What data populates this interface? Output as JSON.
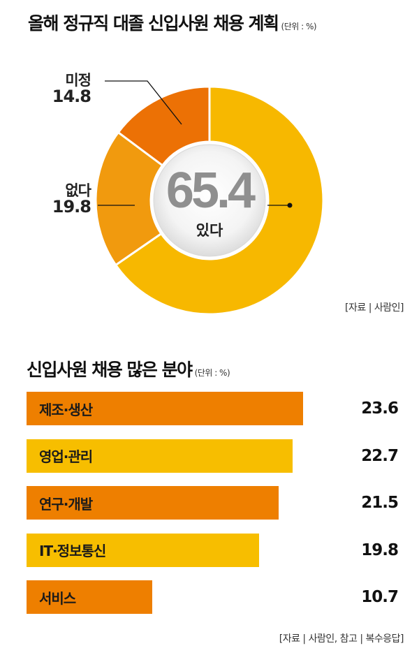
{
  "colors": {
    "yes": "#F7B800",
    "none": "#F19A0E",
    "undecided": "#EC7105",
    "bar_orange": "#EE7F00",
    "bar_yellow": "#F7BE00"
  },
  "chart_data": [
    {
      "type": "pie",
      "title": "올해 정규직 대졸 신입사원 채용 계획",
      "unit": "(단위 : %)",
      "slices": [
        {
          "name": "있다",
          "value": 65.4,
          "color": "#F7B800"
        },
        {
          "name": "없다",
          "value": 19.8,
          "color": "#F19A0E"
        },
        {
          "name": "미정",
          "value": 14.8,
          "color": "#EC7105"
        }
      ],
      "source": "[자료 | 사람인]"
    },
    {
      "type": "bar",
      "orientation": "horizontal",
      "title": "신입사원 채용 많은 분야",
      "unit": "(단위 : %)",
      "xlim": [
        0,
        25
      ],
      "bars": [
        {
          "name": "제조·생산",
          "value": 23.6,
          "color": "#EE7F00"
        },
        {
          "name": "영업·관리",
          "value": 22.7,
          "color": "#F7BE00"
        },
        {
          "name": "연구·개발",
          "value": 21.5,
          "color": "#EE7F00"
        },
        {
          "name": "IT·정보통신",
          "value": 19.8,
          "color": "#F7BE00"
        },
        {
          "name": "서비스",
          "value": 10.7,
          "color": "#EE7F00"
        }
      ],
      "source": "[자료 | 사람인, 참고 | 복수응답]"
    }
  ]
}
